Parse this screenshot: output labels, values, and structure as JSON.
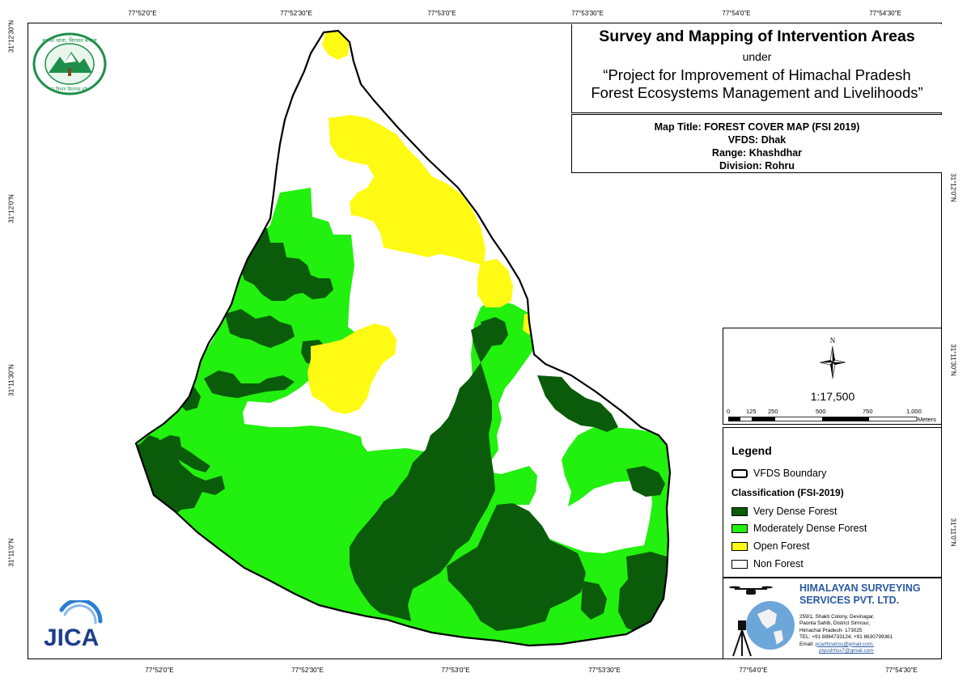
{
  "title": {
    "main": "Survey and Mapping of Intervention Areas",
    "under": "under",
    "project_line1": "“Project for Improvement of Himachal Pradesh",
    "project_line2": "Forest Ecosystems Management and Livelihoods”"
  },
  "info": {
    "map_title": "Map Title: FOREST COVER MAP (FSI 2019)",
    "vfds": "VFDS: Dhak",
    "range": "Range: Khashdhar",
    "division": "Division: Rohru"
  },
  "graticule": {
    "top": [
      "77°52'0\"E",
      "77°52'30\"E",
      "77°53'0\"E",
      "77°53'30\"E",
      "77°54'0\"E",
      "77°54'30\"E"
    ],
    "bottom": [
      "77°52'0\"E",
      "77°52'30\"E",
      "77°53'0\"E",
      "77°53'30\"E",
      "77°54'0\"E",
      "77°54'30\"E"
    ],
    "left": [
      "31°12'30\"N",
      "31°12'0\"N",
      "31°11'30\"N",
      "31°11'0\"N"
    ],
    "right": [
      "31°12'0\"N",
      "31°11'30\"N",
      "31°11'0\"N"
    ]
  },
  "north": {
    "letter": "N",
    "scale": "1:17,500"
  },
  "scalebar": {
    "labels": [
      "0",
      "125",
      "250",
      "500",
      "750",
      "1,000"
    ],
    "unit": "Meters"
  },
  "legend": {
    "title": "Legend",
    "boundary_label": "VFDS Boundary",
    "classification_title": "Classification (FSI-2019)",
    "items": [
      {
        "label": "Very Dense Forest",
        "color": "#0a5c0a"
      },
      {
        "label": "Moderately Dense Forest",
        "color": "#22f00e"
      },
      {
        "label": "Open Forest",
        "color": "#fffa14"
      },
      {
        "label": "Non Forest",
        "color": "#ffffff"
      }
    ]
  },
  "company": {
    "name_line1": "HIMALAYAN SURVEYING",
    "name_line2": "SERVICES PVT. LTD.",
    "address": [
      "259/1, Shakti Colony, Devinagar,",
      "Paonta Sahib, District Sirmour,",
      "Himachal Pradesh- 173025",
      "TEL: +91 8894733124, +91 8630799361"
    ],
    "email_label": "Email:",
    "email1": "pcarthnahss@gmail.com,",
    "email2": "piyushhss7@gmail.com"
  },
  "logos": {
    "forest_dept_text_top": "हर की जाना, विरासत बचाना",
    "forest_dept_text_bottom": "वन विभाग हिमाचल प्रदेश",
    "jica": "JICA"
  },
  "colors": {
    "very_dense": "#0a5c0a",
    "moderately_dense": "#22f00e",
    "open": "#fffa14",
    "non_forest": "#ffffff",
    "company_blue": "#2a5aa0"
  }
}
